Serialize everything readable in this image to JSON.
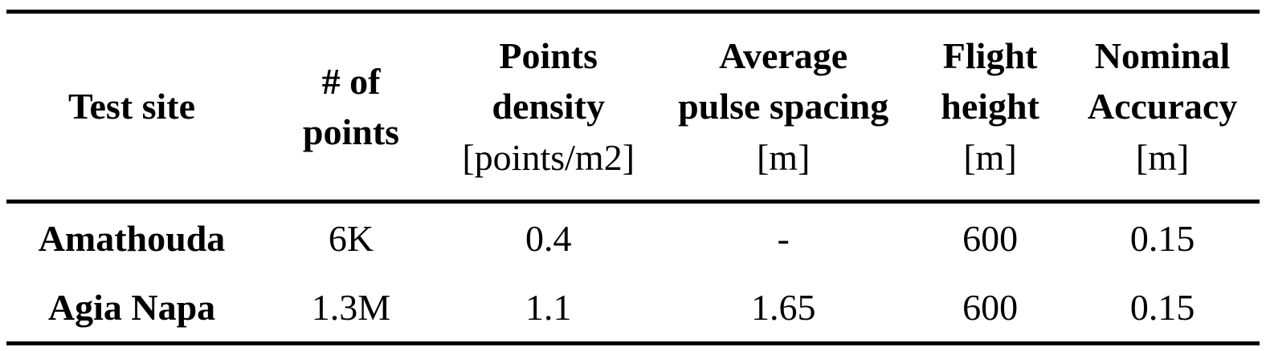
{
  "colors": {
    "background": "#ffffff",
    "text": "#000000",
    "rule": "#000000"
  },
  "table": {
    "columns": [
      {
        "name": "Test site",
        "unit": ""
      },
      {
        "name": "# of\npoints",
        "unit": ""
      },
      {
        "name": "Points\ndensity",
        "unit": "[points/m2]"
      },
      {
        "name": "Average\npulse spacing",
        "unit": "[m]"
      },
      {
        "name": "Flight\nheight",
        "unit": "[m]"
      },
      {
        "name": "Nominal\nAccuracy",
        "unit": "[m]"
      }
    ],
    "rows": [
      {
        "site": "Amathouda",
        "points": "6K",
        "density": "0.4",
        "pulse_spacing": "-",
        "flight_height": "600",
        "accuracy": "0.15"
      },
      {
        "site": "Agia Napa",
        "points": "1.3M",
        "density": "1.1",
        "pulse_spacing": "1.65",
        "flight_height": "600",
        "accuracy": "0.15"
      }
    ]
  }
}
